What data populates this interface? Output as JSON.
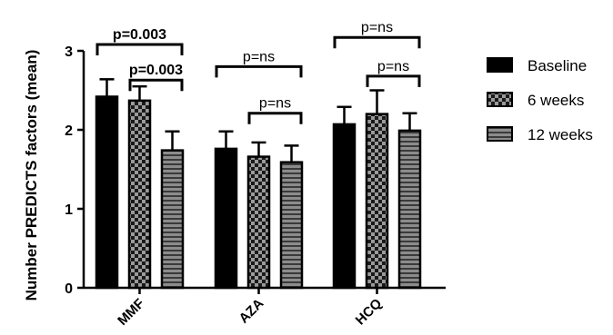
{
  "chart_data": {
    "type": "bar",
    "ylabel": "Number PREDICTS factors (mean)",
    "ylim": [
      0,
      3
    ],
    "yticks": [
      "0",
      "1",
      "2",
      "3"
    ],
    "categories": [
      "MMF",
      "AZA",
      "HCQ"
    ],
    "series": [
      {
        "name": "Baseline",
        "values": [
          2.42,
          1.76,
          2.07
        ],
        "errors": [
          0.22,
          0.22,
          0.22
        ],
        "pattern": "solid"
      },
      {
        "name": "6 weeks",
        "values": [
          2.37,
          1.66,
          2.2
        ],
        "errors": [
          0.18,
          0.18,
          0.3
        ],
        "pattern": "checker"
      },
      {
        "name": "12 weeks",
        "values": [
          1.74,
          1.59,
          1.99
        ],
        "errors": [
          0.24,
          0.21,
          0.22
        ],
        "pattern": "hstripe"
      }
    ],
    "comparisons": [
      {
        "category": "MMF",
        "from": 0,
        "to": 2,
        "label": "p=0.003",
        "bold": true,
        "level": 3.08
      },
      {
        "category": "MMF",
        "from": 1,
        "to": 2,
        "label": "p=0.003",
        "bold": true,
        "level": 2.63
      },
      {
        "category": "AZA",
        "from": 0,
        "to": 2,
        "label": "p=ns",
        "bold": false,
        "level": 2.8
      },
      {
        "category": "AZA",
        "from": 1,
        "to": 2,
        "label": "p=ns",
        "bold": false,
        "level": 2.21
      },
      {
        "category": "HCQ",
        "from": 0,
        "to": 2,
        "label": "p=ns",
        "bold": false,
        "level": 3.17
      },
      {
        "category": "HCQ",
        "from": 1,
        "to": 2,
        "label": "p=ns",
        "bold": false,
        "level": 2.68
      }
    ],
    "legend_position": "right",
    "grid": false
  }
}
